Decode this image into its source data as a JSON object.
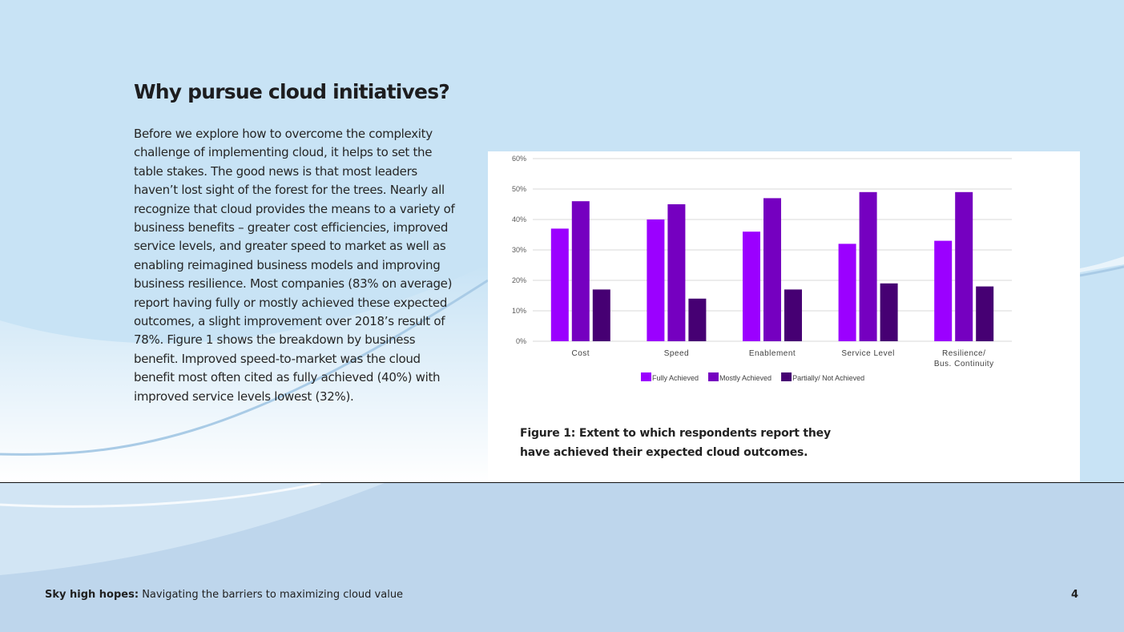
{
  "page": {
    "title": "Why pursue cloud initiatives?",
    "body": "Before we explore how to overcome the complexity challenge of implementing cloud, it helps to set the table stakes. The good news is that most leaders haven’t lost sight of the forest for the trees. Nearly all recognize that cloud provides the means to a variety of business benefits – greater cost efficiencies, improved service levels, and greater speed to market as well as enabling reimagined business models and improving business resilience. Most companies (83% on average) report having fully or mostly achieved these expected outcomes, a slight improvement over 2018’s result of 78%.  Figure 1 shows the breakdown by business benefit. Improved speed-to-market was the cloud benefit most often cited as fully achieved (40%) with improved service levels lowest (32%).",
    "caption": "Figure 1: Extent to which respondents report they have achieved their expected cloud outcomes."
  },
  "footer": {
    "report_title": "Sky high hopes:",
    "report_subtitle": "Navigating the barriers to maximizing cloud value",
    "page_number": "4"
  },
  "colors": {
    "fully": "#9b00ff",
    "mostly": "#7500c0",
    "partially": "#460073",
    "sky": "#c8e3f5",
    "band": "#bed6ec"
  },
  "chart_data": {
    "type": "bar",
    "categories": [
      "Cost",
      "Speed",
      "Enablement",
      "Service Level",
      "Resilience/\nBus. Continuity"
    ],
    "series": [
      {
        "name": "Fully Achieved",
        "values": [
          37,
          40,
          36,
          32,
          33
        ]
      },
      {
        "name": "Mostly Achieved",
        "values": [
          46,
          45,
          47,
          49,
          49
        ]
      },
      {
        "name": "Partially/ Not Achieved",
        "values": [
          17,
          14,
          17,
          19,
          18
        ]
      }
    ],
    "y_ticks": [
      "0%",
      "10%",
      "20%",
      "30%",
      "40%",
      "50%",
      "60%"
    ],
    "ylim": [
      0,
      60
    ],
    "grid": true,
    "legend": "bottom",
    "title": "",
    "xlabel": "",
    "ylabel": ""
  }
}
